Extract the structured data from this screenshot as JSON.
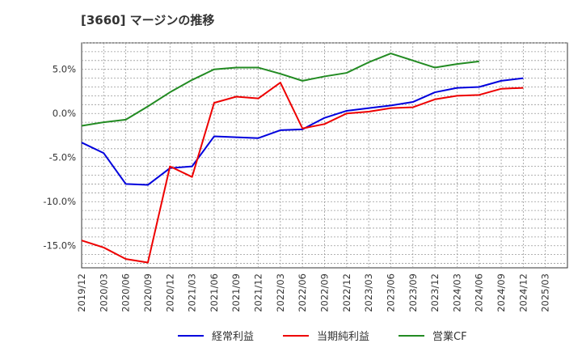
{
  "chart_data": {
    "type": "line",
    "title": "[3660]  マージンの推移",
    "x": [
      "2019/12",
      "2020/03",
      "2020/06",
      "2020/09",
      "2020/12",
      "2021/03",
      "2021/06",
      "2021/09",
      "2021/12",
      "2022/03",
      "2022/06",
      "2022/09",
      "2022/12",
      "2023/03",
      "2023/06",
      "2023/09",
      "2023/12",
      "2024/03",
      "2024/06",
      "2024/09",
      "2024/12",
      "2025/03"
    ],
    "xlabel": "",
    "ylabel": "",
    "ylim": [
      -17.5,
      8
    ],
    "yticks": [
      5,
      0,
      -5,
      -10,
      -15
    ],
    "ytick_labels": [
      "5.0%",
      "0.0%",
      "-5.0%",
      "-10.0%",
      "-15.0%"
    ],
    "grid": true,
    "legend_position": "bottom",
    "series": [
      {
        "name": "経常利益",
        "color": "#0000dd",
        "values": [
          -3.3,
          -4.5,
          -8.0,
          -8.1,
          -6.2,
          -6.0,
          -2.6,
          -2.7,
          -2.8,
          -1.9,
          -1.8,
          -0.5,
          0.3,
          0.6,
          0.9,
          1.3,
          2.4,
          2.9,
          3.0,
          3.7,
          4.0,
          null
        ]
      },
      {
        "name": "当期純利益",
        "color": "#ee0000",
        "values": [
          -14.4,
          -15.2,
          -16.5,
          -16.9,
          -6.0,
          -7.2,
          1.2,
          1.9,
          1.7,
          3.5,
          -1.7,
          -1.2,
          0.0,
          0.2,
          0.6,
          0.7,
          1.6,
          2.0,
          2.1,
          2.8,
          2.9,
          null
        ]
      },
      {
        "name": "営業CF",
        "color": "#228b22",
        "values": [
          -1.4,
          -1.0,
          -0.7,
          0.8,
          2.4,
          3.8,
          5.0,
          5.2,
          5.2,
          4.5,
          3.7,
          4.2,
          4.6,
          5.8,
          6.8,
          6.0,
          5.2,
          5.6,
          5.9,
          null,
          null,
          null
        ]
      }
    ]
  }
}
